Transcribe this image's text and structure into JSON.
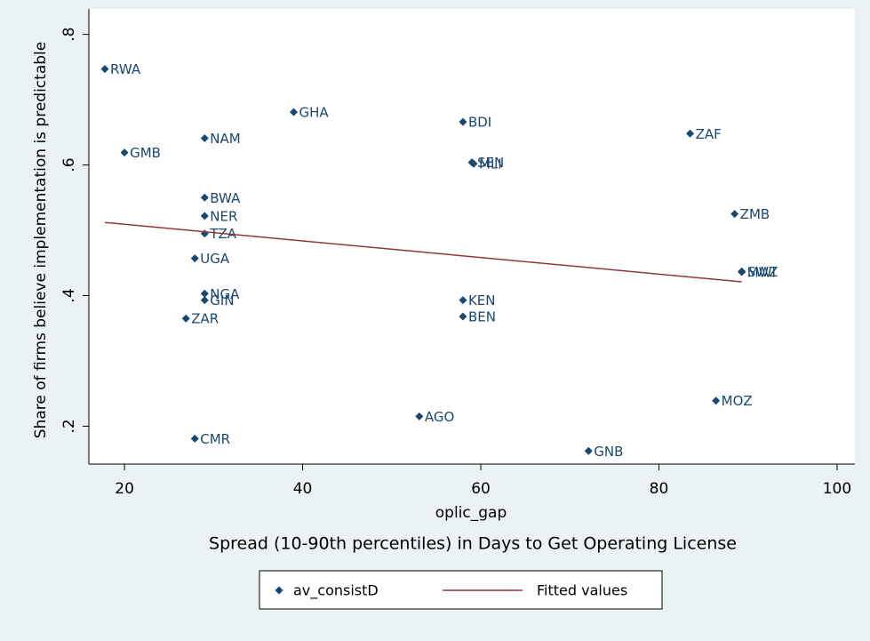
{
  "chart_data": {
    "type": "scatter",
    "ylabel": "Share of firms believe implementation is predictable",
    "xlabel": "oplic_gap",
    "caption": "Spread (10-90th percentiles) in Days to Get Operating License",
    "xlim": [
      16,
      102
    ],
    "ylim": [
      0.142,
      0.839
    ],
    "xticks": [
      20,
      40,
      60,
      80,
      100
    ],
    "yticks": [
      {
        "value": 0.2,
        "label": ".2"
      },
      {
        "value": 0.4,
        "label": ".4"
      },
      {
        "value": 0.6,
        "label": ".6"
      },
      {
        "value": 0.8,
        "label": ".8"
      }
    ],
    "legend": "bottom",
    "series": [
      {
        "name": "av_consistD",
        "color": "#1a476f",
        "type": "scatter",
        "labels": [
          "RWA",
          "GMB",
          "GHA",
          "NAM",
          "BDI",
          "ZAF",
          "SEN",
          "MLI",
          "BWA",
          "NER",
          "TZA",
          "ZMB",
          "UGA",
          "SWZ",
          "MWI",
          "NGA",
          "GIN",
          "KEN",
          "ZAR",
          "BEN",
          "AGO",
          "MOZ",
          "CMR",
          "GNB"
        ],
        "x": [
          17.8,
          20,
          39,
          29,
          58,
          83.5,
          59,
          59.2,
          29,
          29,
          29,
          88.5,
          27.9,
          89.3,
          89.3,
          29,
          29,
          58,
          26.9,
          58,
          53.1,
          86.4,
          27.9,
          72.1
        ],
        "values": [
          0.747,
          0.619,
          0.681,
          0.641,
          0.666,
          0.648,
          0.604,
          0.602,
          0.55,
          0.522,
          0.495,
          0.525,
          0.457,
          0.437,
          0.436,
          0.403,
          0.393,
          0.393,
          0.365,
          0.368,
          0.215,
          0.239,
          0.181,
          0.162
        ]
      },
      {
        "name": "Fitted values",
        "color": "#90353b",
        "type": "line",
        "x": [
          17.8,
          89.3
        ],
        "values": [
          0.512,
          0.421
        ]
      }
    ]
  }
}
